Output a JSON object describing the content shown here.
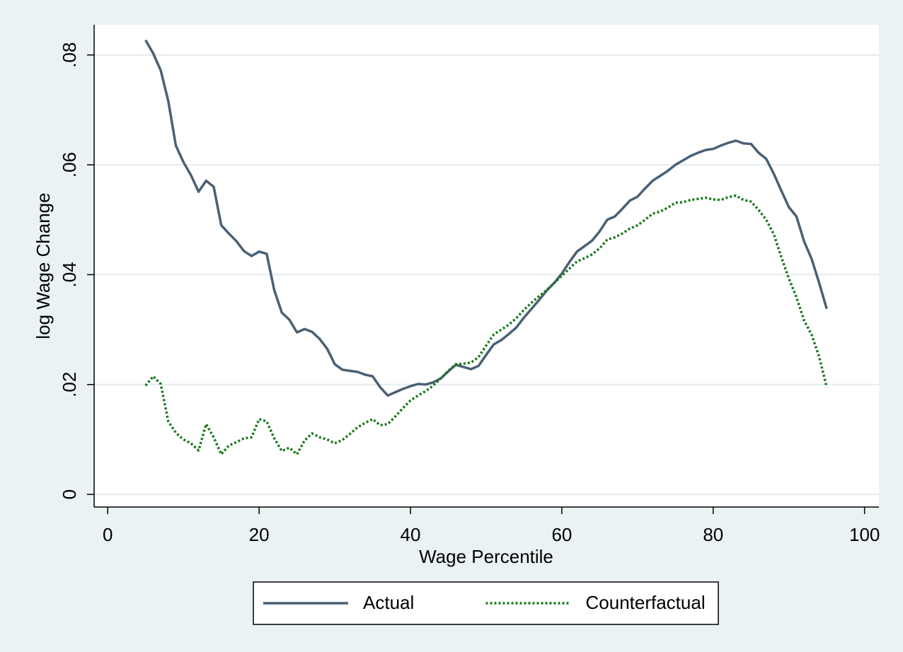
{
  "chart_data": {
    "type": "line",
    "xlabel": "Wage Percentile",
    "ylabel": "log Wage Change",
    "x": [
      5,
      6,
      7,
      8,
      9,
      10,
      11,
      12,
      13,
      14,
      15,
      16,
      17,
      18,
      19,
      20,
      21,
      22,
      23,
      24,
      25,
      26,
      27,
      28,
      29,
      30,
      31,
      32,
      33,
      34,
      35,
      36,
      37,
      38,
      39,
      40,
      41,
      42,
      43,
      44,
      45,
      46,
      47,
      48,
      49,
      50,
      51,
      52,
      53,
      54,
      55,
      56,
      57,
      58,
      59,
      60,
      61,
      62,
      63,
      64,
      65,
      66,
      67,
      68,
      69,
      70,
      71,
      72,
      73,
      74,
      75,
      76,
      77,
      78,
      79,
      80,
      81,
      82,
      83,
      84,
      85,
      86,
      87,
      88,
      89,
      90,
      91,
      92,
      93,
      94,
      95
    ],
    "series": [
      {
        "name": "Actual",
        "color": "#4a6074",
        "dash": "solid",
        "values": [
          0.0827,
          0.0803,
          0.0772,
          0.0716,
          0.0635,
          0.0605,
          0.0581,
          0.0551,
          0.0571,
          0.056,
          0.049,
          0.0475,
          0.0461,
          0.0443,
          0.0434,
          0.0442,
          0.0438,
          0.0372,
          0.0331,
          0.0318,
          0.0295,
          0.0301,
          0.0296,
          0.0283,
          0.0265,
          0.0237,
          0.0227,
          0.0225,
          0.0223,
          0.0218,
          0.0215,
          0.0195,
          0.018,
          0.0186,
          0.0192,
          0.0197,
          0.0201,
          0.02,
          0.0204,
          0.0211,
          0.0224,
          0.0236,
          0.0232,
          0.0228,
          0.0234,
          0.0254,
          0.0273,
          0.0281,
          0.0292,
          0.0304,
          0.0322,
          0.0338,
          0.0354,
          0.0371,
          0.0385,
          0.0402,
          0.0423,
          0.0442,
          0.0452,
          0.0462,
          0.0479,
          0.05,
          0.0506,
          0.052,
          0.0535,
          0.0542,
          0.0557,
          0.0571,
          0.058,
          0.0589,
          0.06,
          0.0608,
          0.0616,
          0.0622,
          0.0627,
          0.0629,
          0.0635,
          0.064,
          0.0644,
          0.0639,
          0.0638,
          0.0622,
          0.0611,
          0.0584,
          0.0553,
          0.0523,
          0.0506,
          0.0461,
          0.0429,
          0.0385,
          0.0338
        ]
      },
      {
        "name": "Counterfactual",
        "color": "#1b7a1b",
        "dash": "dotted",
        "values": [
          0.0198,
          0.0215,
          0.0201,
          0.0133,
          0.0112,
          0.01,
          0.0093,
          0.008,
          0.0128,
          0.0104,
          0.0073,
          0.0089,
          0.0095,
          0.0102,
          0.0104,
          0.0137,
          0.0133,
          0.0102,
          0.0079,
          0.0085,
          0.0073,
          0.0098,
          0.0111,
          0.0104,
          0.01,
          0.0093,
          0.0099,
          0.011,
          0.0122,
          0.013,
          0.0137,
          0.0126,
          0.0128,
          0.0142,
          0.0157,
          0.0171,
          0.018,
          0.0188,
          0.0198,
          0.0211,
          0.0225,
          0.0237,
          0.0238,
          0.024,
          0.025,
          0.0271,
          0.0291,
          0.03,
          0.0309,
          0.0321,
          0.0336,
          0.0349,
          0.0361,
          0.0372,
          0.0385,
          0.0398,
          0.0411,
          0.0424,
          0.043,
          0.0437,
          0.0448,
          0.0464,
          0.0468,
          0.0475,
          0.0484,
          0.049,
          0.05,
          0.0511,
          0.0515,
          0.0522,
          0.0531,
          0.0532,
          0.0536,
          0.0538,
          0.054,
          0.0537,
          0.0536,
          0.0541,
          0.0544,
          0.0536,
          0.0533,
          0.0518,
          0.05,
          0.0474,
          0.0432,
          0.0393,
          0.0359,
          0.0317,
          0.0291,
          0.0251,
          0.0195
        ]
      }
    ],
    "xlim": [
      -1.8,
      101.9
    ],
    "xticks": [
      0,
      20,
      40,
      60,
      80,
      100
    ],
    "ylim": [
      -0.0023,
      0.0855
    ],
    "yticks": [
      {
        "value": 0,
        "label": "0"
      },
      {
        "value": 0.02,
        "label": ".02"
      },
      {
        "value": 0.04,
        "label": ".04"
      },
      {
        "value": 0.06,
        "label": ".06"
      },
      {
        "value": 0.08,
        "label": ".08"
      }
    ],
    "grid": true,
    "legend": "bottom"
  }
}
